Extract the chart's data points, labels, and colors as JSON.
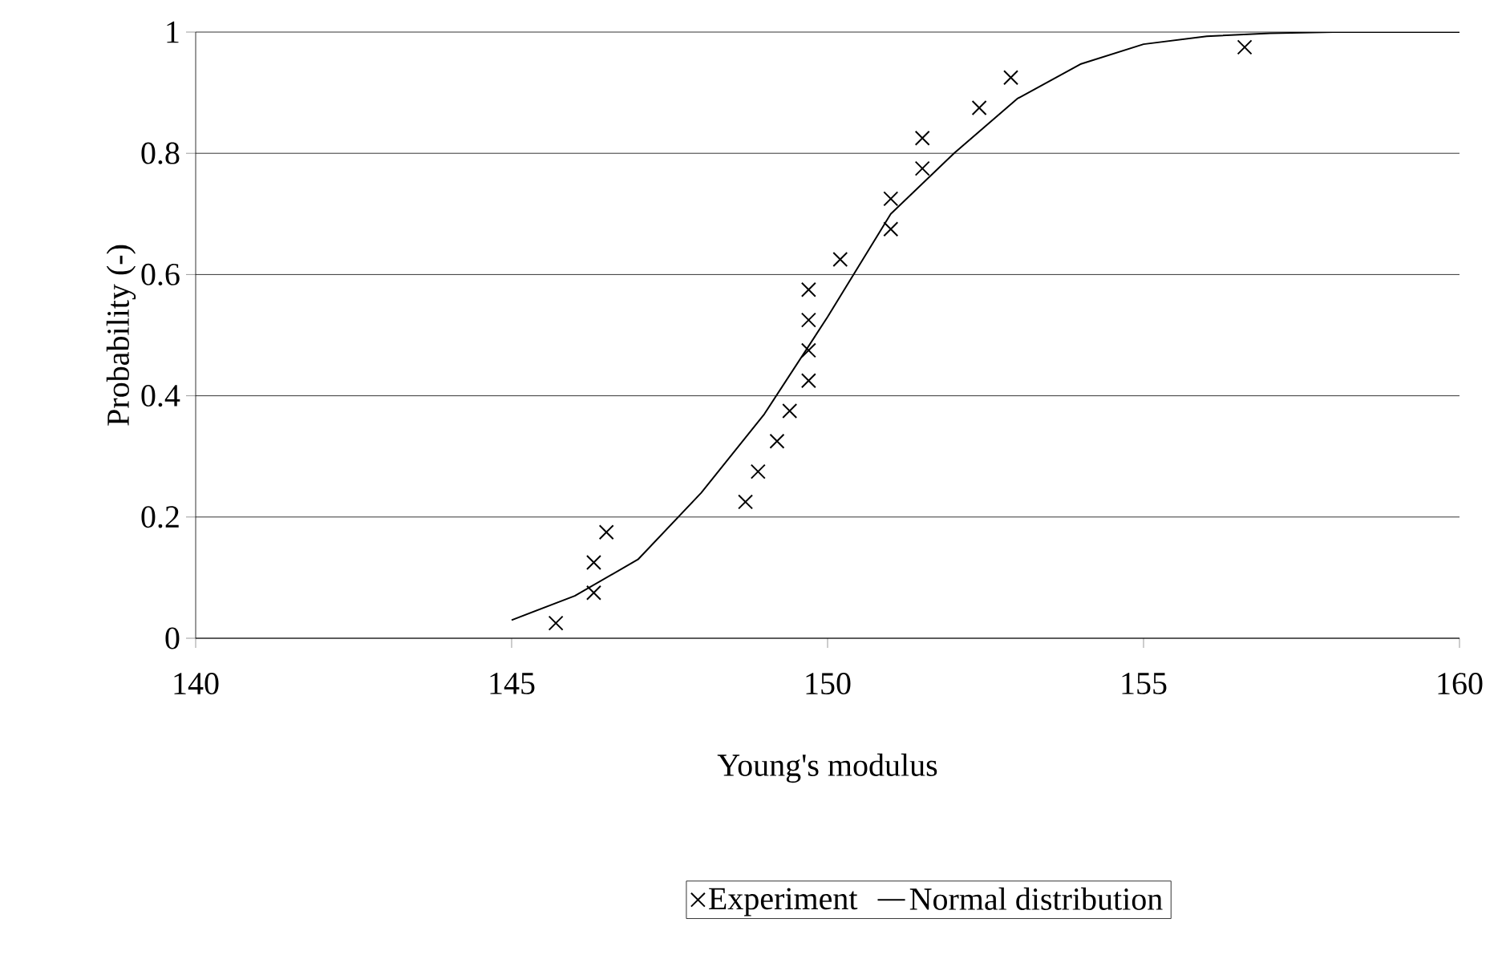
{
  "chart_data": {
    "type": "scatter",
    "xlabel": "Young's modulus",
    "ylabel": "Probability (-)",
    "xlim": [
      140,
      160
    ],
    "xticks": [
      140,
      145,
      150,
      155,
      160
    ],
    "ylim": [
      0,
      1
    ],
    "yticks": [
      0,
      0.2,
      0.4,
      0.6,
      0.8,
      1
    ],
    "grid": "y",
    "legend": "bottom",
    "series": [
      {
        "name": "Experiment",
        "marker": "cross",
        "color": "#000000",
        "x": [
          145.7,
          146.3,
          146.3,
          146.5,
          148.7,
          148.9,
          149.2,
          149.4,
          149.7,
          149.7,
          149.7,
          149.7,
          150.2,
          151.0,
          151.0,
          151.5,
          151.5,
          152.4,
          152.9,
          156.6
        ],
        "values": [
          0.025,
          0.075,
          0.125,
          0.175,
          0.225,
          0.275,
          0.325,
          0.375,
          0.425,
          0.475,
          0.525,
          0.575,
          0.625,
          0.675,
          0.725,
          0.775,
          0.825,
          0.875,
          0.925,
          0.975
        ]
      },
      {
        "name": "Normal distribution",
        "type": "line",
        "marker": "none",
        "line_style": "solid",
        "color": "#000000",
        "x": [
          145,
          146,
          147,
          148,
          149,
          150,
          151,
          152,
          153,
          154,
          155,
          156,
          157,
          158,
          159,
          160
        ],
        "values": [
          0.03,
          0.07,
          0.13,
          0.24,
          0.37,
          0.53,
          0.7,
          0.8,
          0.89,
          0.947,
          0.98,
          0.993,
          0.998,
          1,
          1,
          1
        ]
      }
    ]
  }
}
